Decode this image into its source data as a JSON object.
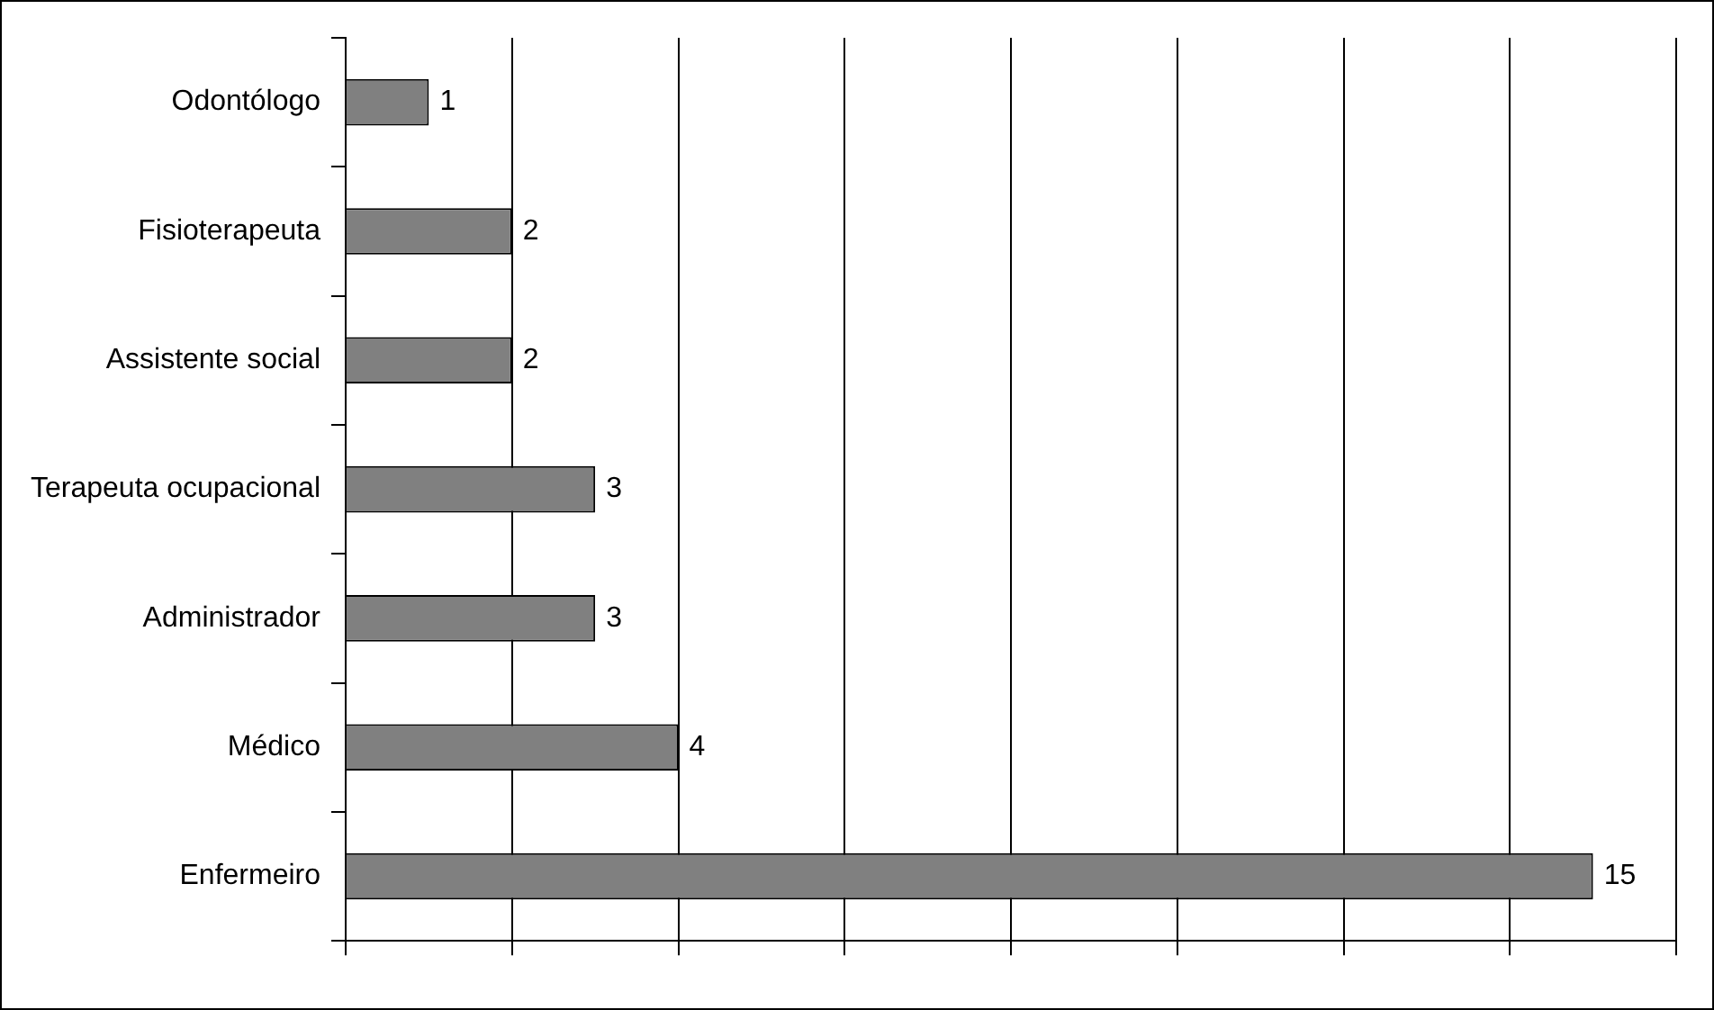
{
  "chart_data": {
    "type": "bar",
    "orientation": "horizontal",
    "categories": [
      "Odontólogo",
      "Fisioterapeuta",
      "Assistente social",
      "Terapeuta ocupacional",
      "Administrador",
      "Médico",
      "Enfermeiro"
    ],
    "values": [
      1,
      2,
      2,
      3,
      3,
      4,
      15
    ],
    "color": "#808080",
    "xlim": [
      0,
      16
    ],
    "xticks": [
      {
        "value": 0,
        "label": null
      },
      {
        "value": 2,
        "label": null
      },
      {
        "value": 4,
        "label": null
      },
      {
        "value": 6,
        "label": null
      },
      {
        "value": 8,
        "label": null
      },
      {
        "value": 10,
        "label": null
      },
      {
        "value": 12,
        "label": null
      },
      {
        "value": 14,
        "label": null
      },
      {
        "value": 16,
        "label": null
      }
    ],
    "grid": "x",
    "tick_labels": "y",
    "data_labels": true,
    "legend": false
  }
}
